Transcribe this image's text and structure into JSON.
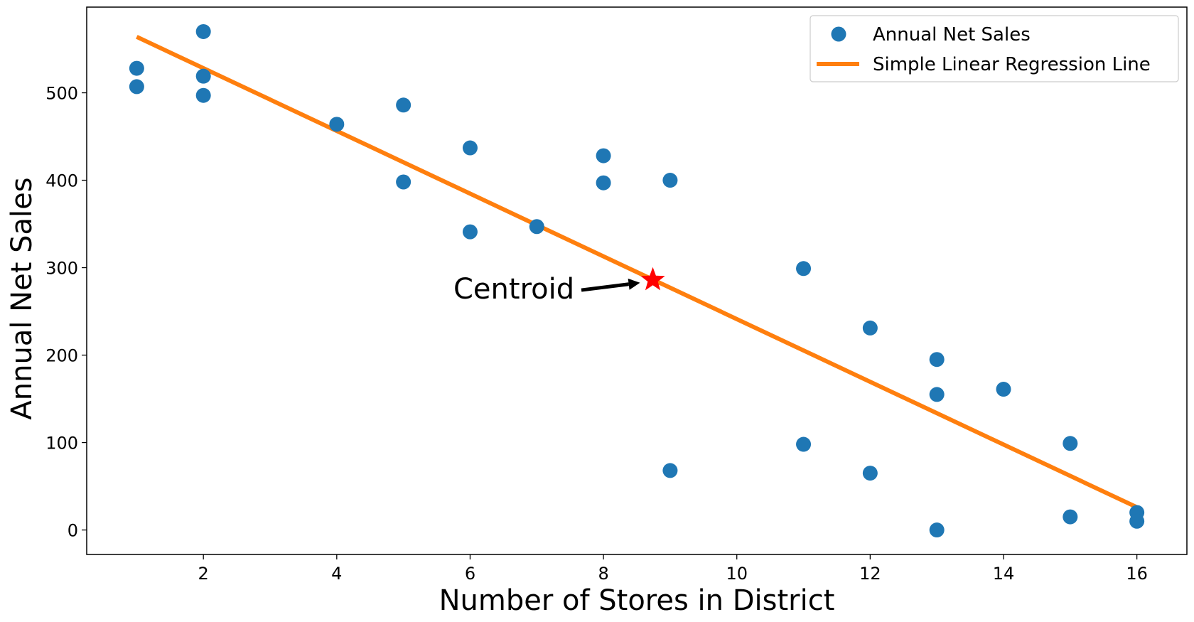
{
  "chart_data": {
    "type": "scatter",
    "title": "",
    "xlabel": "Number of Stores in District",
    "ylabel": "Annual Net Sales",
    "xlim": [
      0.25,
      16.75
    ],
    "ylim": [
      -28,
      598
    ],
    "xticks": [
      2,
      4,
      6,
      8,
      10,
      12,
      14,
      16
    ],
    "yticks": [
      0,
      100,
      200,
      300,
      400,
      500
    ],
    "grid": false,
    "legend_position": "top-right",
    "series": [
      {
        "name": "Annual Net Sales",
        "kind": "scatter",
        "color": "#1f77b4",
        "points": [
          [
            1,
            528
          ],
          [
            1,
            507
          ],
          [
            2,
            570
          ],
          [
            2,
            519
          ],
          [
            2,
            497
          ],
          [
            4,
            464
          ],
          [
            5,
            486
          ],
          [
            5,
            398
          ],
          [
            6,
            437
          ],
          [
            6,
            341
          ],
          [
            7,
            347
          ],
          [
            8,
            428
          ],
          [
            8,
            397
          ],
          [
            9,
            400
          ],
          [
            9,
            68
          ],
          [
            11,
            299
          ],
          [
            11,
            98
          ],
          [
            12,
            231
          ],
          [
            12,
            65
          ],
          [
            13,
            195
          ],
          [
            13,
            155
          ],
          [
            13,
            0
          ],
          [
            14,
            161
          ],
          [
            15,
            99
          ],
          [
            15,
            15
          ],
          [
            16,
            20
          ],
          [
            16,
            10
          ]
        ]
      },
      {
        "name": "Simple Linear Regression Line",
        "kind": "line",
        "color": "#ff7f0e",
        "points": [
          [
            1,
            564
          ],
          [
            16,
            26
          ]
        ]
      }
    ],
    "annotations": [
      {
        "text": "Centroid",
        "marker": "star",
        "marker_color": "#ff0000",
        "point": [
          8.74,
          286
        ],
        "text_position": [
          5.75,
          276
        ]
      }
    ]
  }
}
